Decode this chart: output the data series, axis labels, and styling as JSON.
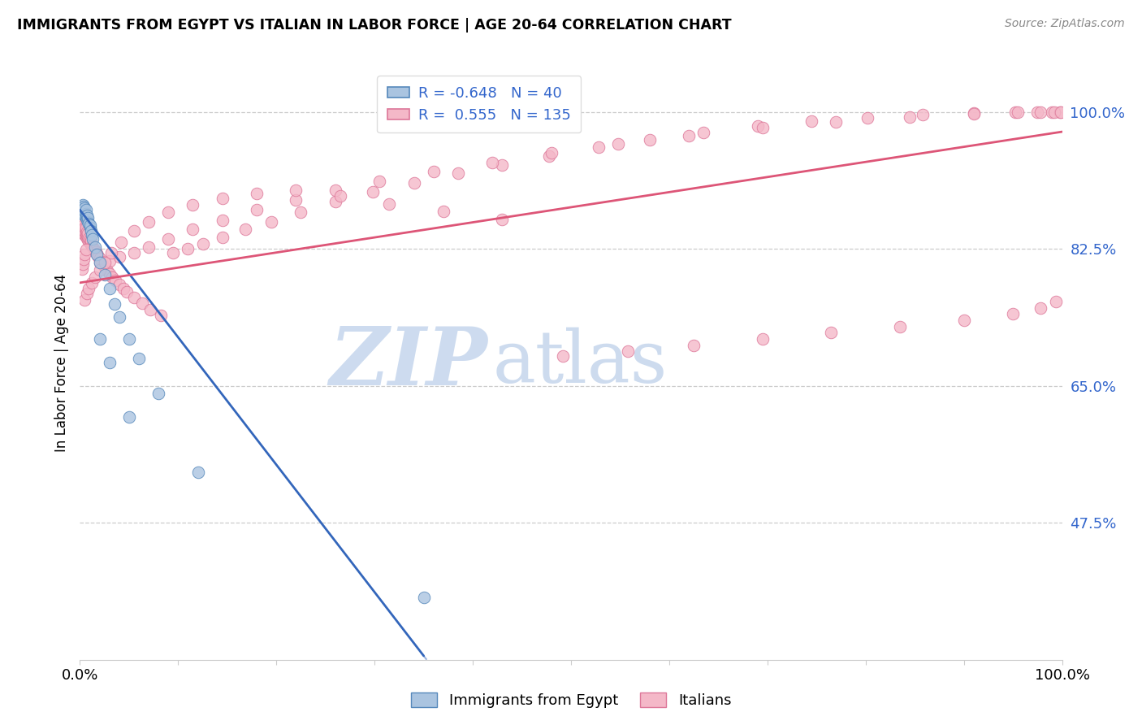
{
  "title": "IMMIGRANTS FROM EGYPT VS ITALIAN IN LABOR FORCE | AGE 20-64 CORRELATION CHART",
  "source": "Source: ZipAtlas.com",
  "ylabel": "In Labor Force | Age 20-64",
  "xlim": [
    0.0,
    1.0
  ],
  "ylim": [
    0.3,
    1.06
  ],
  "yticks": [
    0.475,
    0.65,
    0.825,
    1.0
  ],
  "ytick_labels": [
    "47.5%",
    "65.0%",
    "82.5%",
    "100.0%"
  ],
  "legend_r_egypt": "-0.648",
  "legend_n_egypt": "40",
  "legend_r_italian": "0.555",
  "legend_n_italian": "135",
  "egypt_color": "#aac4e0",
  "egypt_edge_color": "#5588bb",
  "italian_color": "#f4b8c8",
  "italian_edge_color": "#dd7799",
  "trend_egypt_color": "#3366bb",
  "trend_italian_color": "#dd5577",
  "watermark_zip_color": "#c8d8ee",
  "watermark_atlas_color": "#b8cce8",
  "egypt_x": [
    0.002,
    0.002,
    0.003,
    0.003,
    0.003,
    0.003,
    0.004,
    0.004,
    0.004,
    0.005,
    0.005,
    0.005,
    0.006,
    0.006,
    0.006,
    0.007,
    0.007,
    0.008,
    0.008,
    0.009,
    0.01,
    0.01,
    0.011,
    0.012,
    0.013,
    0.015,
    0.017,
    0.02,
    0.025,
    0.03,
    0.035,
    0.04,
    0.05,
    0.06,
    0.08,
    0.12,
    0.02,
    0.03,
    0.05,
    0.35
  ],
  "egypt_y": [
    0.87,
    0.878,
    0.872,
    0.875,
    0.88,
    0.882,
    0.871,
    0.876,
    0.879,
    0.868,
    0.873,
    0.877,
    0.865,
    0.87,
    0.875,
    0.863,
    0.868,
    0.86,
    0.865,
    0.858,
    0.852,
    0.856,
    0.848,
    0.843,
    0.838,
    0.828,
    0.818,
    0.808,
    0.792,
    0.775,
    0.755,
    0.738,
    0.71,
    0.685,
    0.64,
    0.54,
    0.71,
    0.68,
    0.61,
    0.38
  ],
  "italian_x": [
    0.002,
    0.002,
    0.003,
    0.003,
    0.003,
    0.004,
    0.004,
    0.004,
    0.005,
    0.005,
    0.005,
    0.006,
    0.006,
    0.006,
    0.006,
    0.007,
    0.007,
    0.007,
    0.008,
    0.008,
    0.008,
    0.009,
    0.009,
    0.01,
    0.01,
    0.011,
    0.011,
    0.012,
    0.013,
    0.014,
    0.015,
    0.016,
    0.017,
    0.018,
    0.019,
    0.02,
    0.022,
    0.024,
    0.026,
    0.028,
    0.03,
    0.033,
    0.036,
    0.04,
    0.044,
    0.048,
    0.055,
    0.063,
    0.072,
    0.082,
    0.095,
    0.11,
    0.125,
    0.145,
    0.168,
    0.195,
    0.225,
    0.26,
    0.298,
    0.34,
    0.385,
    0.43,
    0.478,
    0.528,
    0.58,
    0.635,
    0.69,
    0.745,
    0.802,
    0.858,
    0.91,
    0.952,
    0.975,
    0.99,
    0.998,
    0.02,
    0.03,
    0.04,
    0.055,
    0.07,
    0.09,
    0.115,
    0.145,
    0.18,
    0.22,
    0.26,
    0.305,
    0.36,
    0.42,
    0.48,
    0.548,
    0.62,
    0.695,
    0.77,
    0.845,
    0.91,
    0.955,
    0.978,
    0.992,
    0.999,
    0.005,
    0.007,
    0.009,
    0.012,
    0.015,
    0.02,
    0.025,
    0.032,
    0.042,
    0.055,
    0.07,
    0.09,
    0.115,
    0.145,
    0.18,
    0.22,
    0.265,
    0.315,
    0.37,
    0.43,
    0.492,
    0.558,
    0.625,
    0.695,
    0.765,
    0.835,
    0.9,
    0.95,
    0.978,
    0.994,
    0.002,
    0.003,
    0.004,
    0.005,
    0.006
  ],
  "italian_y": [
    0.85,
    0.855,
    0.848,
    0.852,
    0.858,
    0.845,
    0.85,
    0.856,
    0.843,
    0.847,
    0.853,
    0.841,
    0.845,
    0.849,
    0.853,
    0.839,
    0.843,
    0.847,
    0.837,
    0.841,
    0.845,
    0.835,
    0.839,
    0.833,
    0.838,
    0.831,
    0.836,
    0.829,
    0.827,
    0.825,
    0.823,
    0.821,
    0.819,
    0.817,
    0.815,
    0.813,
    0.809,
    0.805,
    0.801,
    0.797,
    0.793,
    0.789,
    0.785,
    0.78,
    0.775,
    0.77,
    0.763,
    0.756,
    0.748,
    0.74,
    0.82,
    0.825,
    0.832,
    0.84,
    0.85,
    0.86,
    0.872,
    0.886,
    0.898,
    0.91,
    0.922,
    0.933,
    0.944,
    0.955,
    0.965,
    0.974,
    0.982,
    0.989,
    0.993,
    0.997,
    0.999,
    1.0,
    1.0,
    1.0,
    1.0,
    0.808,
    0.81,
    0.815,
    0.82,
    0.828,
    0.838,
    0.85,
    0.862,
    0.875,
    0.888,
    0.9,
    0.912,
    0.924,
    0.936,
    0.948,
    0.96,
    0.97,
    0.98,
    0.988,
    0.994,
    0.998,
    1.0,
    1.0,
    1.0,
    1.0,
    0.76,
    0.768,
    0.775,
    0.782,
    0.789,
    0.798,
    0.808,
    0.82,
    0.834,
    0.848,
    0.86,
    0.872,
    0.882,
    0.89,
    0.896,
    0.9,
    0.893,
    0.883,
    0.873,
    0.863,
    0.688,
    0.695,
    0.702,
    0.71,
    0.718,
    0.726,
    0.734,
    0.742,
    0.75,
    0.758,
    0.8,
    0.806,
    0.812,
    0.818,
    0.824
  ],
  "trend_egypt_x0": 0.0,
  "trend_egypt_y0": 0.875,
  "trend_egypt_x1": 0.35,
  "trend_egypt_y1": 0.305,
  "trend_italian_x0": 0.0,
  "trend_italian_y0": 0.782,
  "trend_italian_x1": 1.0,
  "trend_italian_y1": 0.975
}
